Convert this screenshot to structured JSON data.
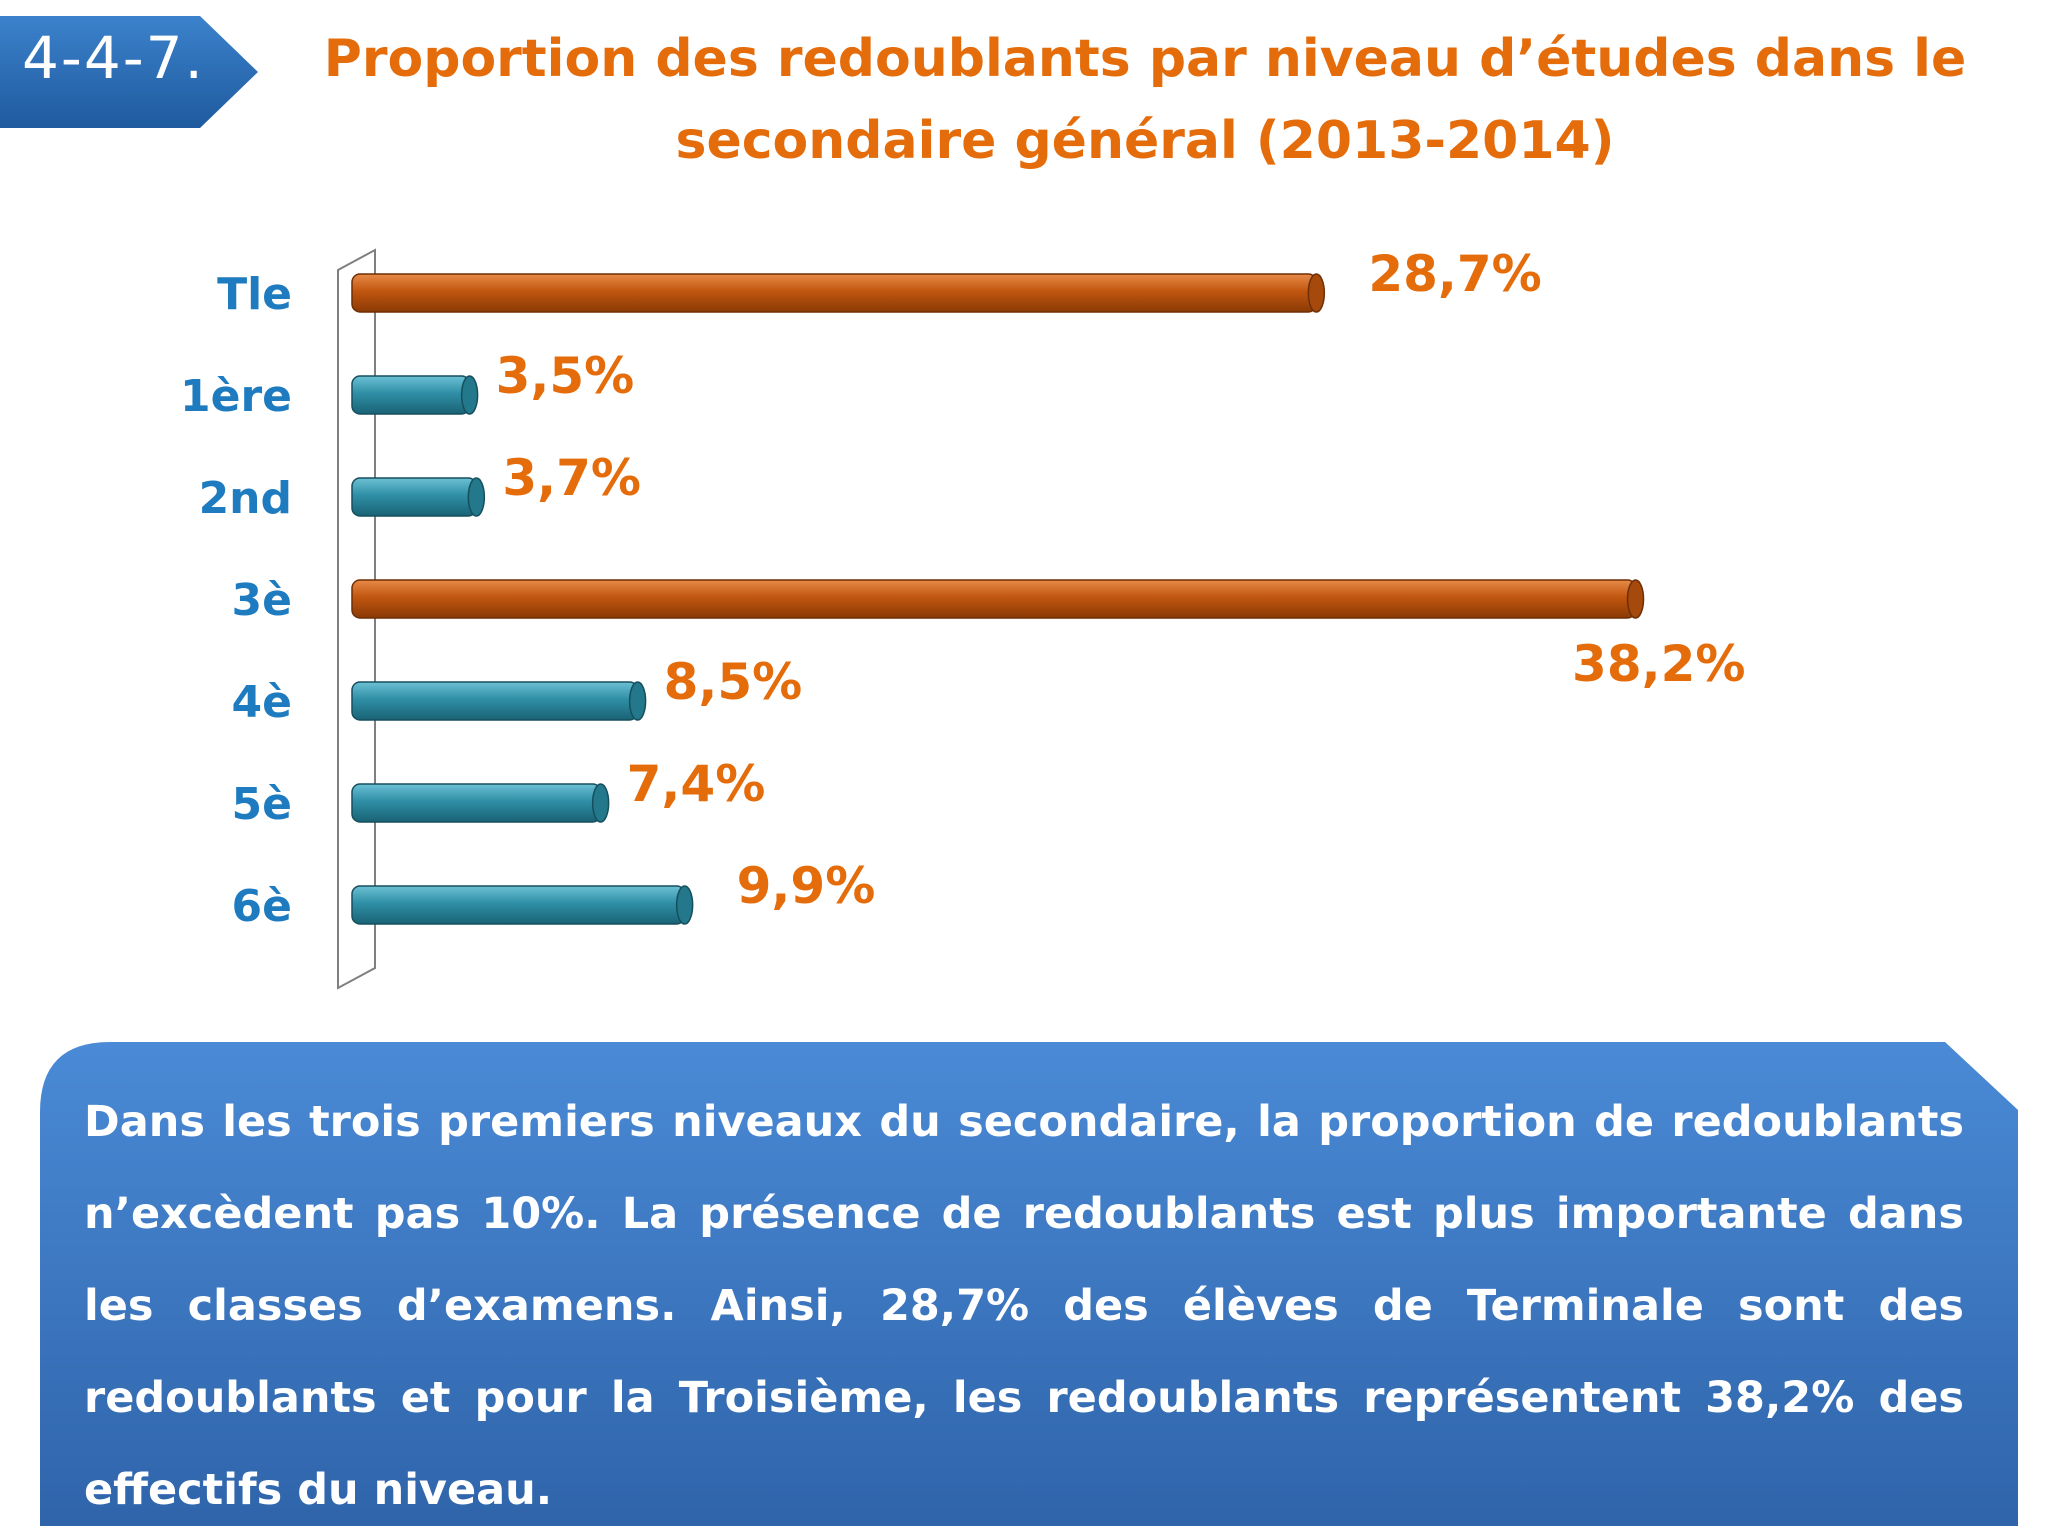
{
  "header": {
    "badge": "4-4-7.",
    "title": "Proportion des redoublants par niveau d’études dans le secondaire général (2013-2014)"
  },
  "colors": {
    "highlight_bar": "#c0560f",
    "normal_bar": "#2f8fa6",
    "category_label": "#1f7bbf",
    "value_label": "#e46c0a",
    "badge": "#2c6db3",
    "note_box": "#3f7fc9"
  },
  "chart_data": {
    "type": "bar",
    "orientation": "horizontal",
    "categories": [
      "Tle",
      "1ère",
      "2nd",
      "3è",
      "4è",
      "5è",
      "6è"
    ],
    "values": [
      28.7,
      3.5,
      3.7,
      38.2,
      8.5,
      7.4,
      9.9
    ],
    "value_labels": [
      "28,7%",
      "3,5%",
      "3,7%",
      "38,2%",
      "8,5%",
      "7,4%",
      "9,9%"
    ],
    "highlight": [
      true,
      false,
      false,
      true,
      false,
      false,
      false
    ],
    "xlim": [
      0,
      40
    ],
    "title": "",
    "xlabel": "",
    "ylabel": "",
    "grid": false,
    "legend": "none"
  },
  "note": {
    "text": "Dans les trois premiers niveaux du secondaire, la proportion de redoublants n’excèdent pas 10%. La présence de redoublants est plus importante dans les classes d’examens. Ainsi, 28,7% des élèves de Terminale sont des redoublants et pour la Troisième, les redoublants représentent 38,2% des effectifs du niveau."
  }
}
